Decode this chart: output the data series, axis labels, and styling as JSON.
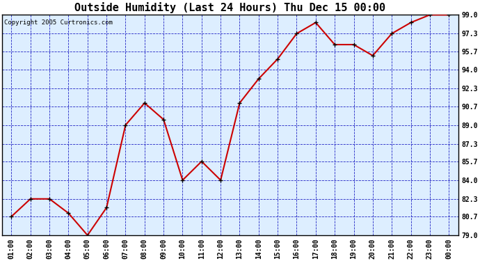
{
  "title": "Outside Humidity (Last 24 Hours) Thu Dec 15 00:00",
  "copyright": "Copyright 2005 Curtronics.com",
  "x_labels": [
    "01:00",
    "02:00",
    "03:00",
    "04:00",
    "05:00",
    "06:00",
    "07:00",
    "08:00",
    "09:00",
    "10:00",
    "11:00",
    "12:00",
    "13:00",
    "14:00",
    "15:00",
    "16:00",
    "17:00",
    "18:00",
    "19:00",
    "20:00",
    "21:00",
    "22:00",
    "23:00",
    "00:00"
  ],
  "y_values": [
    80.7,
    82.3,
    82.3,
    81.0,
    79.0,
    81.5,
    89.0,
    91.0,
    89.5,
    84.0,
    85.7,
    84.0,
    91.0,
    93.2,
    95.0,
    97.3,
    98.3,
    96.3,
    96.3,
    95.3,
    97.3,
    98.3,
    99.0,
    99.0
  ],
  "ylim_min": 79.0,
  "ylim_max": 99.0,
  "ytick_vals": [
    79.0,
    80.7,
    82.3,
    84.0,
    85.7,
    87.3,
    89.0,
    90.7,
    92.3,
    94.0,
    95.7,
    97.3,
    99.0
  ],
  "ytick_labels": [
    "79.0",
    "80.7",
    "82.3",
    "84.0",
    "85.7",
    "87.3",
    "89.0",
    "90.7",
    "92.3",
    "94.0",
    "95.7",
    "97.3",
    "99.0"
  ],
  "line_color": "#cc0000",
  "marker_color": "#000000",
  "plot_bg": "#ddeeff",
  "grid_color": "#0000bb",
  "title_fontsize": 11,
  "tick_fontsize": 7,
  "copyright_fontsize": 6.5
}
